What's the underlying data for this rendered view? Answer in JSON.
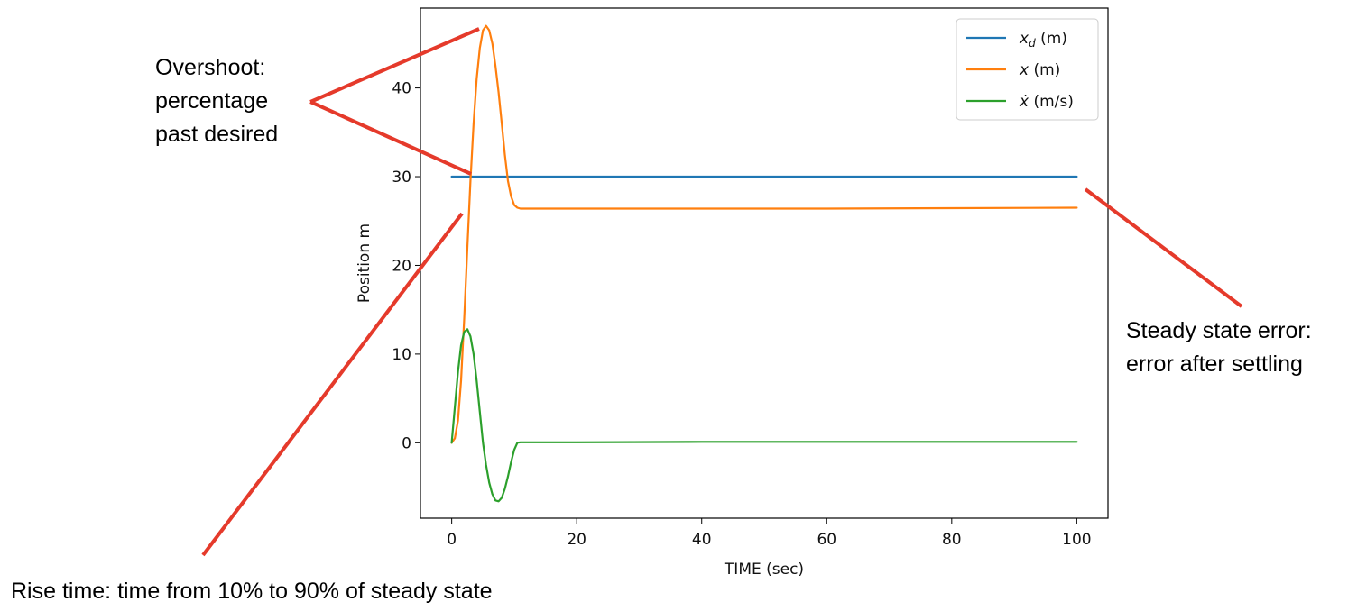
{
  "annotations": {
    "overshoot_title": "Overshoot:",
    "overshoot_line2": "percentage",
    "overshoot_line3": "past desired",
    "steady_title": "Steady state error:",
    "steady_line2": "error after settling",
    "rise_time": "Rise time: time from 10% to 90% of steady state"
  },
  "annotation_color": "#e53a2b",
  "chart_data": {
    "type": "line",
    "title": "",
    "xlabel": "TIME (sec)",
    "ylabel": "Position m",
    "xlim": [
      -5,
      105
    ],
    "ylim": [
      -8.5,
      49
    ],
    "xticks": [
      0,
      20,
      40,
      60,
      80,
      100
    ],
    "yticks": [
      0,
      10,
      20,
      30,
      40
    ],
    "grid": false,
    "legend_position": "top-right",
    "series": [
      {
        "name": "x_d (m)",
        "legend_var": "x",
        "legend_sub": "d",
        "legend_unit": " (m)",
        "color": "#1f77b4",
        "x": [
          0,
          100
        ],
        "y": [
          30,
          30
        ]
      },
      {
        "name": "x (m)",
        "legend_var": "x",
        "legend_unit": " (m)",
        "color": "#ff7f0e",
        "x": [
          0,
          0.5,
          1,
          1.5,
          2,
          2.5,
          3,
          3.5,
          4,
          4.5,
          5,
          5.5,
          6,
          6.5,
          7,
          7.5,
          8,
          8.5,
          9,
          9.5,
          10,
          10.5,
          11,
          12,
          20,
          40,
          60,
          80,
          100
        ],
        "y": [
          0,
          0.5,
          2.5,
          7,
          14,
          22,
          29.5,
          36,
          41,
          44.5,
          46.5,
          47,
          46.5,
          45,
          42.5,
          39.5,
          36,
          32.5,
          29.5,
          27.8,
          26.8,
          26.5,
          26.4,
          26.4,
          26.4,
          26.4,
          26.4,
          26.45,
          26.5
        ]
      },
      {
        "name": "ẋ (m/s)",
        "legend_var": "ẋ",
        "legend_unit": " (m/s)",
        "color": "#2ca02c",
        "x": [
          0,
          0.5,
          1,
          1.5,
          2,
          2.5,
          3,
          3.5,
          4,
          4.5,
          5,
          5.5,
          6,
          6.5,
          7,
          7.5,
          8,
          8.5,
          9,
          9.5,
          10,
          10.5,
          11,
          11.5,
          20,
          40,
          60,
          80,
          100
        ],
        "y": [
          0,
          4,
          8,
          11,
          12.5,
          12.8,
          12,
          10,
          7,
          3.5,
          0,
          -2.5,
          -4.5,
          -5.8,
          -6.5,
          -6.6,
          -6.2,
          -5.2,
          -3.8,
          -2.2,
          -0.8,
          0,
          0.05,
          0.05,
          0.05,
          0.1,
          0.1,
          0.1,
          0.1
        ]
      }
    ]
  }
}
